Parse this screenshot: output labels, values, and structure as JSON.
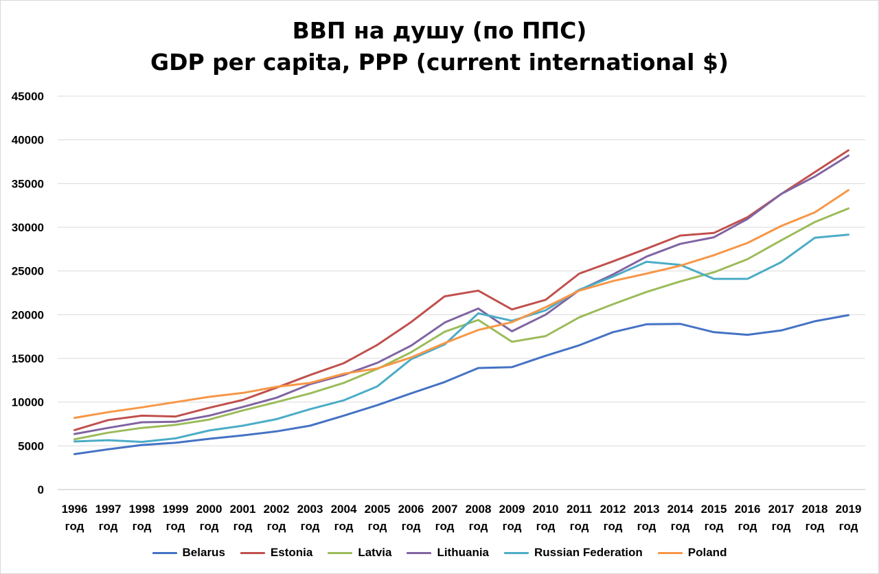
{
  "chart_data": {
    "type": "line",
    "title_line1": "ВВП на душу (по ППС)",
    "title_line2": "GDP per capita, PPP (current international $)",
    "xlabel": "",
    "ylabel": "",
    "ylim": [
      0,
      45000
    ],
    "yticks": [
      0,
      5000,
      10000,
      15000,
      20000,
      25000,
      30000,
      35000,
      40000,
      45000
    ],
    "grid": true,
    "legend_position": "bottom",
    "categories": [
      "1996",
      "1997",
      "1998",
      "1999",
      "2000",
      "2001",
      "2002",
      "2003",
      "2004",
      "2005",
      "2006",
      "2007",
      "2008",
      "2009",
      "2010",
      "2011",
      "2012",
      "2013",
      "2014",
      "2015",
      "2016",
      "2017",
      "2018",
      "2019"
    ],
    "category_suffix": "год",
    "series": [
      {
        "name": "Belarus",
        "color": "#4472c4",
        "values": [
          4050,
          4600,
          5100,
          5350,
          5800,
          6200,
          6650,
          7300,
          8450,
          9650,
          11000,
          12300,
          13900,
          14000,
          15300,
          16500,
          18000,
          18900,
          18950,
          18000,
          17700,
          18200,
          19250,
          19950
        ]
      },
      {
        "name": "Estonia",
        "color": "#c0504d",
        "values": [
          6800,
          7950,
          8450,
          8350,
          9350,
          10250,
          11650,
          13100,
          14450,
          16550,
          19150,
          22100,
          22750,
          20600,
          21700,
          24700,
          26100,
          27550,
          29050,
          29350,
          31150,
          33800,
          36300,
          38800
        ]
      },
      {
        "name": "Latvia",
        "color": "#9bbb59",
        "values": [
          5750,
          6500,
          7050,
          7400,
          8000,
          9050,
          10000,
          11000,
          12200,
          13800,
          15700,
          18050,
          19400,
          16900,
          17550,
          19700,
          21200,
          22600,
          23800,
          24850,
          26350,
          28500,
          30600,
          32150
        ]
      },
      {
        "name": "Lithuania",
        "color": "#8064a2",
        "values": [
          6350,
          7050,
          7700,
          7750,
          8450,
          9450,
          10500,
          12050,
          13100,
          14500,
          16450,
          19100,
          20700,
          18100,
          20000,
          22800,
          24600,
          26650,
          28100,
          28850,
          30950,
          33800,
          35800,
          38200
        ]
      },
      {
        "name": "Russian Federation",
        "color": "#4bacc6",
        "values": [
          5500,
          5650,
          5450,
          5850,
          6750,
          7300,
          8050,
          9200,
          10200,
          11800,
          14900,
          16600,
          20150,
          19300,
          20500,
          22850,
          24350,
          26050,
          25700,
          24100,
          24100,
          26000,
          28800,
          29150
        ]
      },
      {
        "name": "Poland",
        "color": "#f79646",
        "values": [
          8200,
          8850,
          9400,
          10000,
          10600,
          11050,
          11750,
          12200,
          13250,
          13850,
          15100,
          16750,
          18250,
          19150,
          20850,
          22750,
          23850,
          24700,
          25600,
          26800,
          28200,
          30150,
          31700,
          34250
        ]
      }
    ]
  }
}
